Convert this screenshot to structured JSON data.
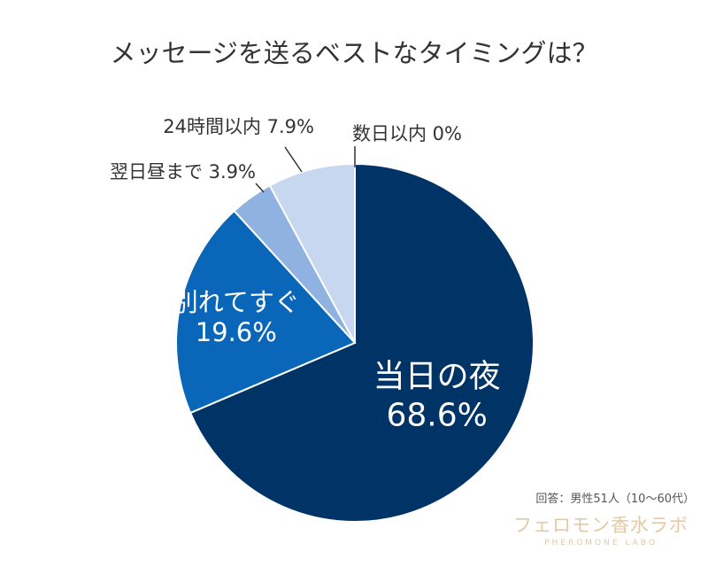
{
  "chart_data": {
    "type": "pie",
    "title": "メッセージを送るベストなタイミングは？",
    "slices": [
      {
        "label": "当日の夜",
        "value": 68.6,
        "value_text": "68.6%",
        "color": "#003366"
      },
      {
        "label": "別れてすぐ",
        "value": 19.6,
        "value_text": "19.6%",
        "color": "#0a66b8"
      },
      {
        "label": "翌日昼まで",
        "value": 3.9,
        "value_text": "3.9%",
        "color": "#8fb2e0"
      },
      {
        "label": "24時間以内",
        "value": 7.9,
        "value_text": "7.9%",
        "color": "#c6d7ef"
      },
      {
        "label": "数日以内",
        "value": 0,
        "value_text": "0%",
        "color": "#c6d7ef"
      }
    ],
    "note": "回答：男性51人（10～60代）"
  },
  "brand": {
    "name": "フェロモン香水ラボ",
    "sub": "PHEROMONE LABO"
  }
}
